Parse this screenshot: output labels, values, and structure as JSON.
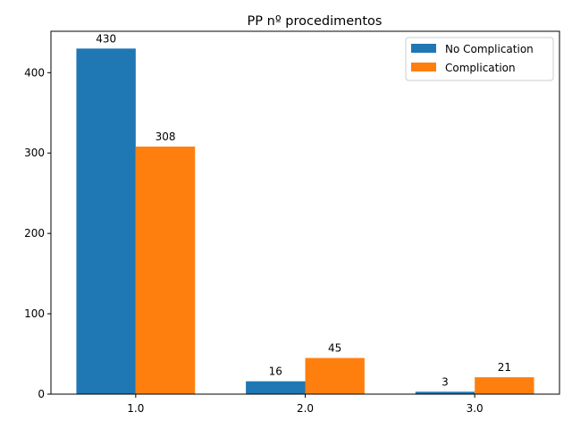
{
  "chart_data": {
    "type": "bar",
    "title": "PP nº procedimentos",
    "xlabel": "",
    "ylabel": "",
    "categories": [
      "1.0",
      "2.0",
      "3.0"
    ],
    "series": [
      {
        "name": "No Complication",
        "values": [
          430,
          16,
          3
        ],
        "color": "#1f77b4"
      },
      {
        "name": "Complication",
        "values": [
          308,
          45,
          21
        ],
        "color": "#ff7f0e"
      }
    ],
    "ylim": [
      0,
      451.5
    ],
    "yticks": [
      "0",
      "100",
      "200",
      "300",
      "400"
    ],
    "grid": false,
    "legend_position": "top-right"
  }
}
